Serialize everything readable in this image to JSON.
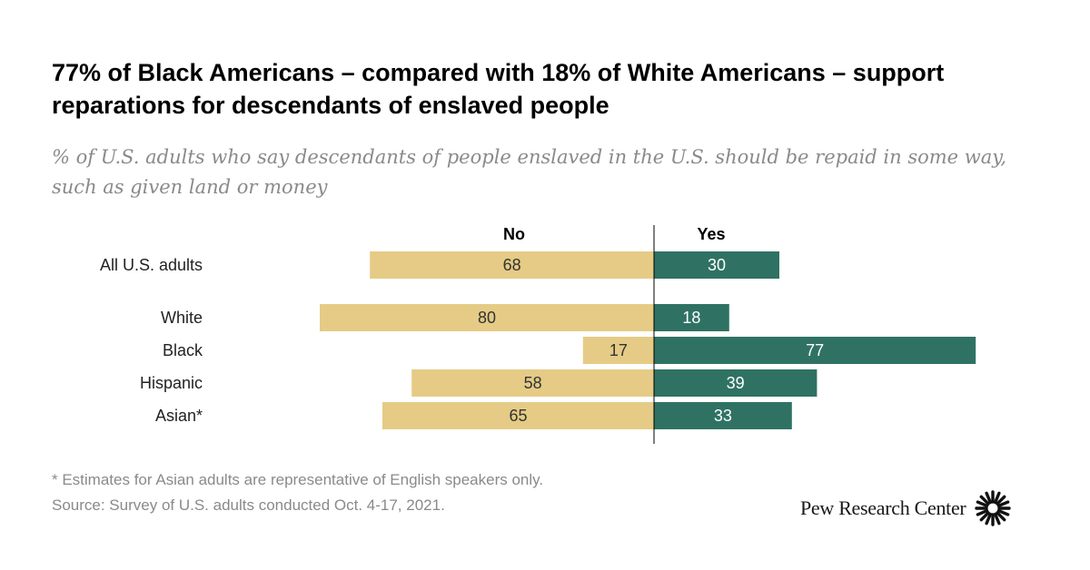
{
  "title": "77% of Black Americans – compared with 18% of White Americans – support reparations for descendants of enslaved people",
  "subtitle": "% of U.S. adults who say descendants of people enslaved in the U.S. should be repaid in some way, such as given land or money",
  "footnotes": [
    "* Estimates for Asian adults are representative of English speakers only.",
    "Source: Survey of U.S. adults conducted Oct. 4-17, 2021."
  ],
  "brand": "Pew Research Center",
  "colors": {
    "no": "#e5cb85",
    "yes": "#2f7263",
    "yes_label": "#ffffff",
    "no_label": "#333333"
  },
  "chart_data": {
    "type": "bar",
    "orientation": "horizontal-diverging",
    "categories": [
      "All U.S. adults",
      "White",
      "Black",
      "Hispanic",
      "Asian*"
    ],
    "series": [
      {
        "name": "No",
        "values": [
          68,
          80,
          17,
          58,
          65
        ]
      },
      {
        "name": "Yes",
        "values": [
          30,
          18,
          77,
          39,
          33
        ]
      }
    ],
    "units": "%",
    "grid": false,
    "legend": "top"
  }
}
